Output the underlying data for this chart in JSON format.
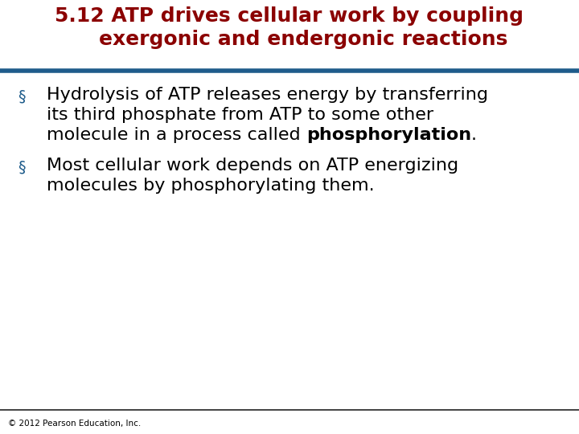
{
  "title_line1": "5.12 ATP drives cellular work by coupling",
  "title_line2": "    exergonic and endergonic reactions",
  "title_color": "#8B0000",
  "title_fontsize": 18,
  "separator_color_top": "#1F5C8B",
  "separator_color_bottom": "#222222",
  "bullet_color": "#1F5C8B",
  "bullet_char": "§",
  "bullet1_line1": "Hydrolysis of ATP releases energy by transferring",
  "bullet1_line2": "its third phosphate from ATP to some other",
  "bullet1_line3_normal": "molecule in a process called ",
  "bullet1_line3_bold": "phosphorylation",
  "bullet1_line3_end": ".",
  "bullet2_line1": "Most cellular work depends on ATP energizing",
  "bullet2_line2": "molecules by phosphorylating them.",
  "body_fontsize": 16,
  "body_color": "#000000",
  "footer_text": "© 2012 Pearson Education, Inc.",
  "footer_fontsize": 7.5,
  "bg_color": "#ffffff",
  "fig_width": 7.2,
  "fig_height": 5.4,
  "dpi": 100
}
